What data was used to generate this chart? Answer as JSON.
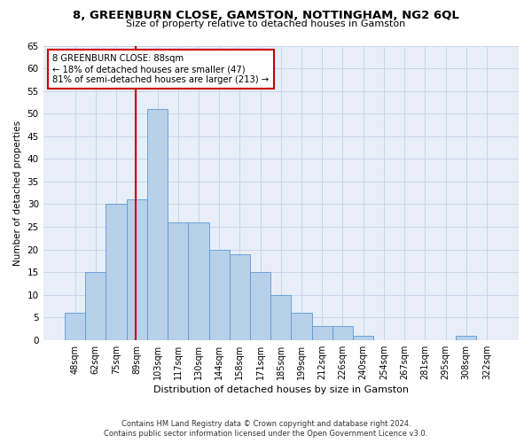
{
  "title": "8, GREENBURN CLOSE, GAMSTON, NOTTINGHAM, NG2 6QL",
  "subtitle": "Size of property relative to detached houses in Gamston",
  "xlabel": "Distribution of detached houses by size in Gamston",
  "ylabel": "Number of detached properties",
  "bar_labels": [
    "48sqm",
    "62sqm",
    "75sqm",
    "89sqm",
    "103sqm",
    "117sqm",
    "130sqm",
    "144sqm",
    "158sqm",
    "171sqm",
    "185sqm",
    "199sqm",
    "212sqm",
    "226sqm",
    "240sqm",
    "254sqm",
    "267sqm",
    "281sqm",
    "295sqm",
    "308sqm",
    "322sqm"
  ],
  "bar_values": [
    6,
    15,
    30,
    31,
    51,
    26,
    26,
    20,
    19,
    15,
    10,
    6,
    3,
    3,
    1,
    0,
    0,
    0,
    0,
    1,
    0
  ],
  "bar_color": "#b8d0ea",
  "bar_edge_color": "#5b9bd5",
  "vline_color": "#cc0000",
  "ylim": [
    0,
    65
  ],
  "yticks": [
    0,
    5,
    10,
    15,
    20,
    25,
    30,
    35,
    40,
    45,
    50,
    55,
    60,
    65
  ],
  "annotation_line1": "8 GREENBURN CLOSE: 88sqm",
  "annotation_line2": "← 18% of detached houses are smaller (47)",
  "annotation_line3": "81% of semi-detached houses are larger (213) →",
  "annotation_box_color": "#ffffff",
  "annotation_border_color": "#cc0000",
  "grid_color": "#c8d4e8",
  "bg_color": "#e8eef8",
  "footnote1": "Contains HM Land Registry data © Crown copyright and database right 2024.",
  "footnote2": "Contains public sector information licensed under the Open Government Licence v3.0.",
  "vline_sqm": 88,
  "sqm_values": [
    48,
    62,
    75,
    89,
    103,
    117,
    130,
    144,
    158,
    171,
    185,
    199,
    212,
    226,
    240,
    254,
    267,
    281,
    295,
    308,
    322
  ]
}
